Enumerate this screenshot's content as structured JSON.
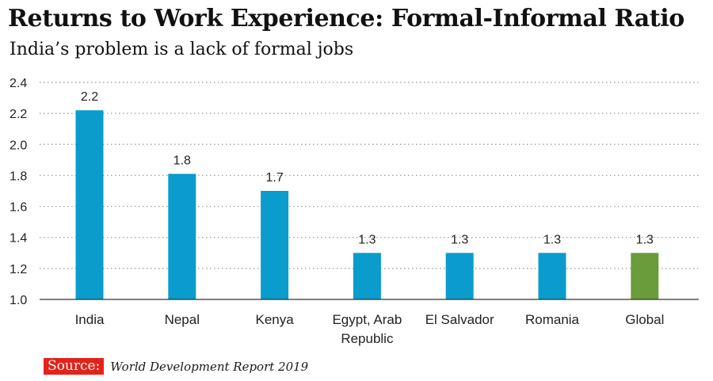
{
  "colors": {
    "bar": "#0a9ccc",
    "highlight_bar": "#6a9c3c",
    "grid": "#9a9a9a",
    "axis": "#333333",
    "source_badge": "#e2231a"
  },
  "chart_data": {
    "type": "bar",
    "title": "Returns to Work Experience: Formal-Informal Ratio",
    "subtitle": "India’s problem is a lack of formal jobs",
    "categories": [
      [
        "India"
      ],
      [
        "Nepal"
      ],
      [
        "Kenya"
      ],
      [
        "Egypt, Arab",
        "Republic"
      ],
      [
        "El Salvador"
      ],
      [
        "Romania"
      ],
      [
        "Global"
      ]
    ],
    "values": [
      2.22,
      1.81,
      1.7,
      1.3,
      1.3,
      1.3,
      1.3
    ],
    "data_labels": [
      "2.2",
      "1.8",
      "1.7",
      "1.3",
      "1.3",
      "1.3",
      "1.3"
    ],
    "highlight_index": 6,
    "ylim": [
      1.0,
      2.4
    ],
    "yticks": [
      "1.0",
      "1.2",
      "1.4",
      "1.6",
      "1.8",
      "2.0",
      "2.2",
      "2.4"
    ],
    "xlabel": "",
    "ylabel": "",
    "grid": "dotted horizontal",
    "legend": "none"
  },
  "source": {
    "label": "Source:",
    "text": "World Development Report 2019"
  }
}
